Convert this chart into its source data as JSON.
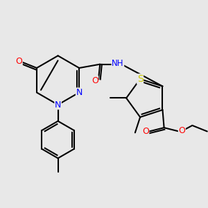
{
  "background_color": "#e8e8e8",
  "bond_color": "#000000",
  "atom_colors": {
    "N": "#0000ff",
    "O": "#ff0000",
    "S": "#cccc00",
    "C": "#000000",
    "H": "#000000"
  },
  "figsize": [
    3.0,
    3.0
  ],
  "dpi": 100,
  "lw": 1.5,
  "fs": 9
}
